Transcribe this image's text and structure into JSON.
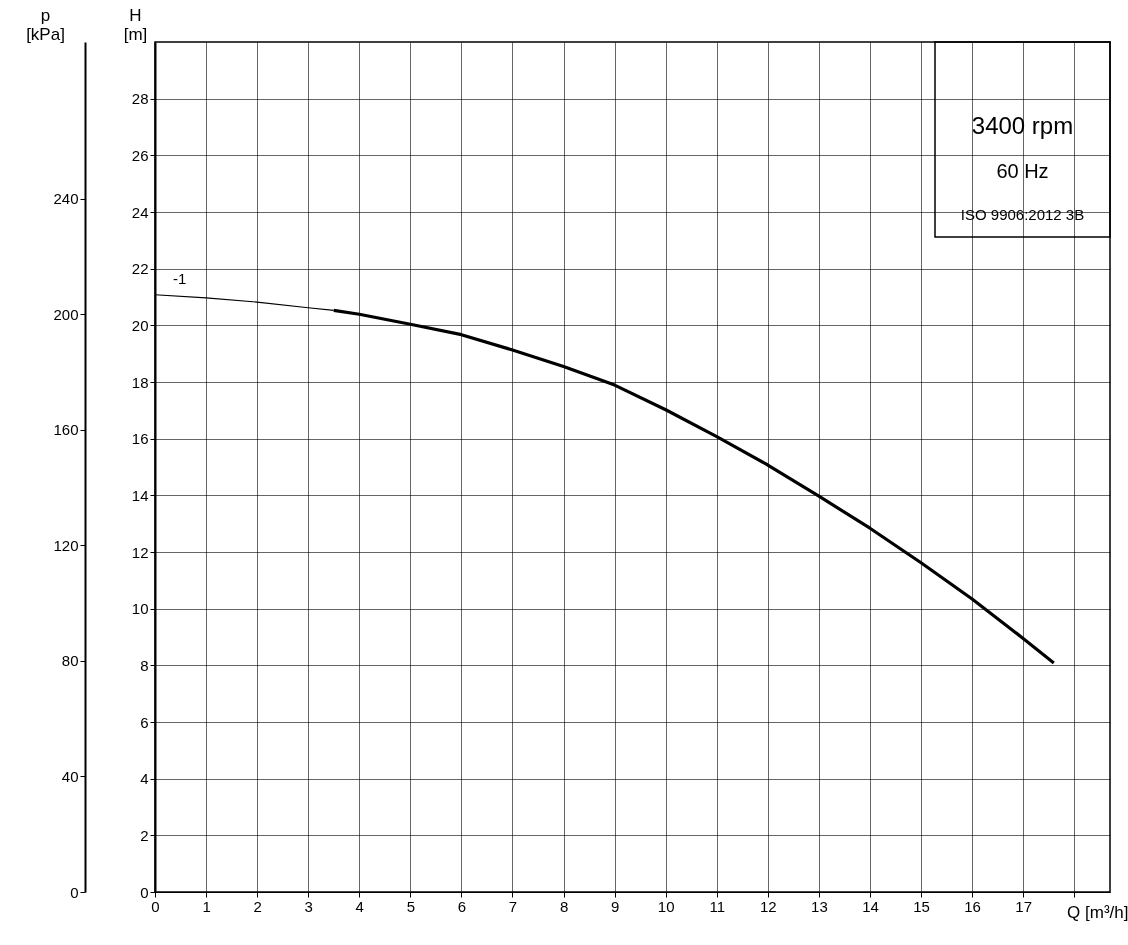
{
  "chart_data": {
    "type": "line",
    "xlabel": "Q [m³/h]",
    "ylabel": "H\n[m]",
    "y2label": "p\n[kPa]",
    "xlim": [
      0,
      18.7
    ],
    "xticks": [
      0,
      1,
      2,
      3,
      4,
      5,
      6,
      7,
      8,
      9,
      10,
      11,
      12,
      13,
      14,
      15,
      16,
      17,
      {
        "value": 18,
        "label": null
      }
    ],
    "ylim": [
      0,
      30
    ],
    "yticks": [
      0,
      2,
      4,
      6,
      8,
      10,
      12,
      14,
      16,
      18,
      20,
      22,
      24,
      26,
      28
    ],
    "y2lim": [
      0,
      294.2
    ],
    "y2ticks": [
      0,
      40,
      80,
      120,
      160,
      200,
      240
    ],
    "grid": true,
    "marker": "none",
    "line_style": "solid",
    "series": [
      {
        "name": "-1",
        "color": "#000000",
        "x": [
          0,
          1,
          2,
          3,
          3.5
        ],
        "values": [
          21.08,
          20.97,
          20.82,
          20.62,
          20.53
        ]
      },
      {
        "color": "#000000",
        "x": [
          3.5,
          4,
          5,
          6,
          7,
          8,
          9,
          10,
          11,
          12,
          13,
          14,
          15,
          16,
          17,
          17.6
        ],
        "values": [
          20.53,
          20.39,
          20.04,
          19.67,
          19.13,
          18.55,
          17.89,
          17.02,
          16.07,
          15.07,
          13.97,
          12.84,
          11.62,
          10.34,
          8.95,
          8.08
        ]
      }
    ],
    "annotations": [
      "3400 rpm",
      "60 Hz",
      "ISO 9906:2012 3B"
    ]
  }
}
